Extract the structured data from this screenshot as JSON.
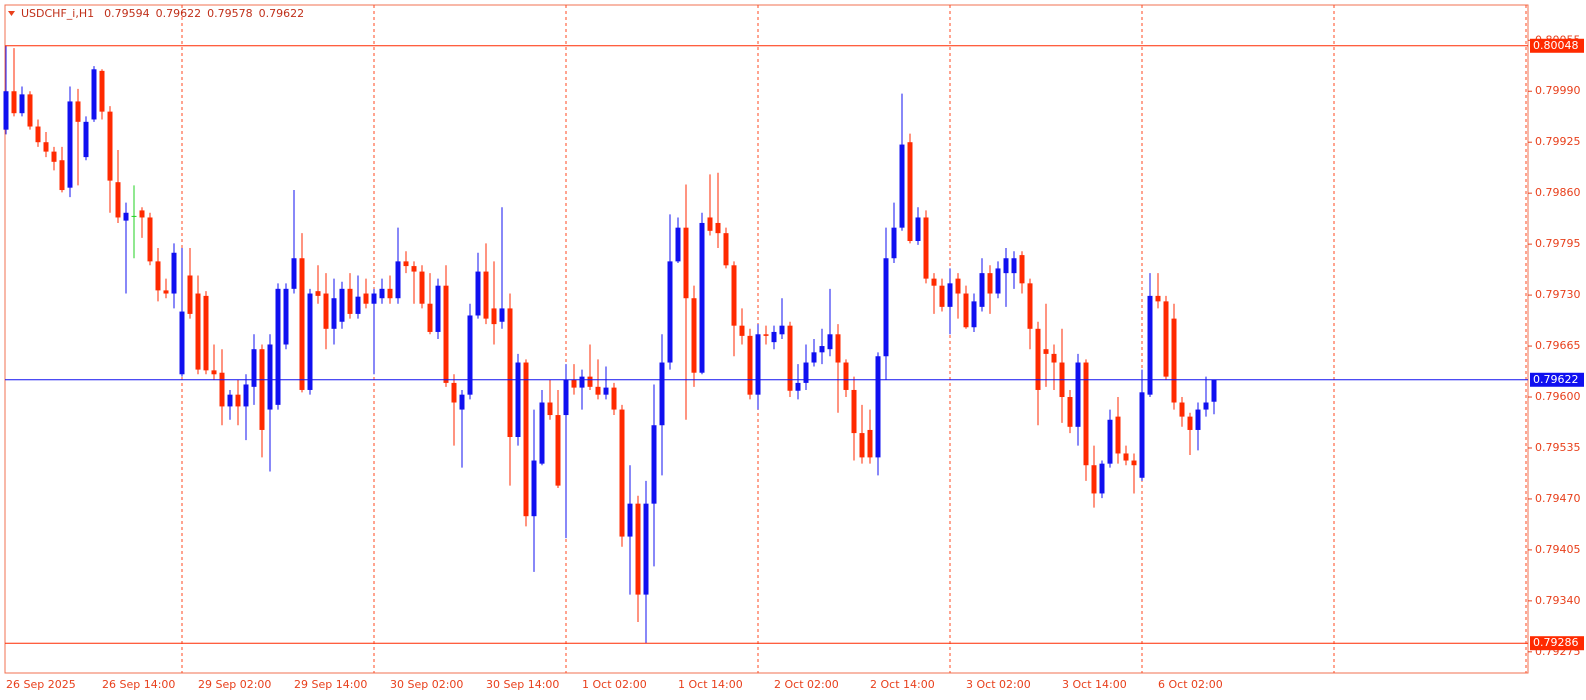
{
  "chart_data": {
    "type": "candlestick",
    "title": "USDCHF_i,H1",
    "header_ohlc": [
      0.79594,
      0.79622,
      0.79578,
      0.79622
    ],
    "categories": [
      "26 Sep 2025",
      null,
      null,
      null,
      null,
      null,
      null,
      null,
      null,
      null,
      null,
      null,
      "26 Sep 14:00",
      null,
      null,
      null,
      null,
      null,
      null,
      null,
      null,
      null,
      null,
      null,
      "29 Sep 02:00",
      null,
      null,
      null,
      null,
      null,
      null,
      null,
      null,
      null,
      null,
      null,
      "29 Sep 14:00",
      null,
      null,
      null,
      null,
      null,
      null,
      null,
      null,
      null,
      null,
      null,
      "30 Sep 02:00",
      null,
      null,
      null,
      null,
      null,
      null,
      null,
      null,
      null,
      null,
      null,
      "30 Sep 14:00",
      null,
      null,
      null,
      null,
      null,
      null,
      null,
      null,
      null,
      null,
      null,
      "1 Oct 02:00",
      null,
      null,
      null,
      null,
      null,
      null,
      null,
      null,
      null,
      null,
      null,
      "1 Oct 14:00",
      null,
      null,
      null,
      null,
      null,
      null,
      null,
      null,
      null,
      null,
      null,
      "2 Oct 02:00",
      null,
      null,
      null,
      null,
      null,
      null,
      null,
      null,
      null,
      null,
      null,
      "2 Oct 14:00",
      null,
      null,
      null,
      null,
      null,
      null,
      null,
      null,
      null,
      null,
      null,
      "3 Oct 02:00",
      null,
      null,
      null,
      null,
      null,
      null,
      null,
      null,
      null,
      null,
      null,
      "3 Oct 14:00",
      null,
      null,
      null,
      null,
      null,
      null,
      null,
      null,
      null,
      null,
      null,
      "6 Oct 02:00",
      null,
      null,
      null,
      null,
      null,
      null,
      null
    ],
    "open": [
      0.79941,
      0.7999,
      0.79962,
      0.79986,
      0.79945,
      0.79925,
      0.79913,
      0.79902,
      0.79867,
      0.79977,
      0.79906,
      0.79954,
      0.80016,
      0.79964,
      0.79874,
      0.79825,
      0.79831,
      0.79838,
      0.79829,
      0.79773,
      0.79736,
      0.79732,
      0.79629,
      0.79755,
      0.79732,
      0.79729,
      0.79634,
      0.79631,
      0.79588,
      0.79603,
      0.79588,
      0.79613,
      0.79661,
      0.79584,
      0.7959,
      0.79667,
      0.79738,
      0.79777,
      0.79609,
      0.79735,
      0.79732,
      0.79687,
      0.79696,
      0.79738,
      0.79706,
      0.79732,
      0.79719,
      0.79726,
      0.79738,
      0.79726,
      0.79773,
      0.79767,
      0.7976,
      0.79719,
      0.79683,
      0.79742,
      0.79618,
      0.79584,
      0.79603,
      0.79704,
      0.7976,
      0.79713,
      0.79696,
      0.79713,
      0.79549,
      0.79644,
      0.79448,
      0.79515,
      0.79593,
      0.79577,
      0.79577,
      0.79622,
      0.79612,
      0.79626,
      0.79613,
      0.79603,
      0.79612,
      0.79584,
      0.79422,
      0.79464,
      0.79348,
      0.79464,
      0.79564,
      0.79644,
      0.79773,
      0.79816,
      0.79726,
      0.79631,
      0.79829,
      0.79822,
      0.79809,
      0.79768,
      0.79691,
      0.79678,
      0.79603,
      0.7968,
      0.7967,
      0.7968,
      0.79691,
      0.79608,
      0.79618,
      0.79644,
      0.79657,
      0.79661,
      0.7968,
      0.79644,
      0.79609,
      0.79554,
      0.79558,
      0.79523,
      0.79652,
      0.79777,
      0.79816,
      0.79925,
      0.79799,
      0.79829,
      0.79751,
      0.79742,
      0.79715,
      0.79751,
      0.79732,
      0.79689,
      0.79715,
      0.79758,
      0.79732,
      0.79758,
      0.79758,
      0.79781,
      0.79745,
      0.79687,
      0.79661,
      0.79655,
      0.79644,
      0.796,
      0.79562,
      0.79644,
      0.79513,
      0.79477,
      0.79515,
      0.79575,
      0.79528,
      0.79519,
      0.79497,
      0.79603,
      0.79729,
      0.79722,
      0.797,
      0.79593,
      0.79575,
      0.79558,
      0.79584,
      0.79594
    ],
    "high": [
      0.80048,
      0.80045,
      0.79996,
      0.7999,
      0.79954,
      0.79938,
      0.79919,
      0.79919,
      0.79996,
      0.79993,
      0.79958,
      0.80022,
      0.80018,
      0.79971,
      0.79915,
      0.79848,
      0.7987,
      0.79842,
      0.79835,
      0.7979,
      0.79751,
      0.79796,
      0.7979,
      0.7979,
      0.79755,
      0.79735,
      0.79667,
      0.79661,
      0.79609,
      0.79622,
      0.79629,
      0.7968,
      0.79667,
      0.7968,
      0.79745,
      0.79745,
      0.79864,
      0.79809,
      0.79738,
      0.79768,
      0.79758,
      0.79751,
      0.79747,
      0.79758,
      0.79755,
      0.79751,
      0.79738,
      0.79751,
      0.79755,
      0.79816,
      0.79786,
      0.79773,
      0.79768,
      0.79758,
      0.79751,
      0.79768,
      0.79629,
      0.79609,
      0.79719,
      0.79784,
      0.79796,
      0.79773,
      0.79842,
      0.79732,
      0.79655,
      0.79648,
      0.79584,
      0.79609,
      0.79622,
      0.79609,
      0.79642,
      0.79642,
      0.79635,
      0.79667,
      0.79648,
      0.79639,
      0.79618,
      0.7959,
      0.79513,
      0.79474,
      0.79493,
      0.79616,
      0.7968,
      0.79833,
      0.79829,
      0.79871,
      0.79742,
      0.79835,
      0.79884,
      0.79886,
      0.79816,
      0.79773,
      0.79713,
      0.79687,
      0.79693,
      0.79691,
      0.79691,
      0.79726,
      0.79696,
      0.79642,
      0.79667,
      0.79674,
      0.79687,
      0.79738,
      0.79693,
      0.79648,
      0.79626,
      0.7959,
      0.79584,
      0.79657,
      0.79816,
      0.79848,
      0.79987,
      0.79936,
      0.79842,
      0.79838,
      0.79758,
      0.79751,
      0.79764,
      0.79758,
      0.79742,
      0.79732,
      0.79777,
      0.79768,
      0.79773,
      0.7979,
      0.79786,
      0.79786,
      0.79751,
      0.79696,
      0.79719,
      0.79667,
      0.79687,
      0.79609,
      0.79655,
      0.79648,
      0.79538,
      0.79519,
      0.79584,
      0.796,
      0.79538,
      0.79528,
      0.79635,
      0.79758,
      0.79758,
      0.79729,
      0.79719,
      0.796,
      0.7958,
      0.79593,
      0.79626,
      0.79622
    ],
    "low": [
      0.79935,
      0.79958,
      0.79958,
      0.79941,
      0.79919,
      0.79906,
      0.79889,
      0.79861,
      0.79855,
      0.7987,
      0.79902,
      0.79951,
      0.79954,
      0.79835,
      0.79822,
      0.79732,
      0.79777,
      0.79803,
      0.79768,
      0.79722,
      0.79726,
      0.79713,
      0.79626,
      0.797,
      0.79629,
      0.79629,
      0.79622,
      0.79564,
      0.79571,
      0.79564,
      0.79545,
      0.7959,
      0.79523,
      0.79505,
      0.79584,
      0.79661,
      0.79732,
      0.79606,
      0.79603,
      0.79719,
      0.79661,
      0.79667,
      0.79687,
      0.797,
      0.797,
      0.79713,
      0.79629,
      0.79719,
      0.79719,
      0.79719,
      0.79758,
      0.79719,
      0.79713,
      0.7968,
      0.79674,
      0.79613,
      0.79538,
      0.7951,
      0.79597,
      0.797,
      0.79693,
      0.79667,
      0.79687,
      0.79487,
      0.79538,
      0.79435,
      0.79377,
      0.79513,
      0.79571,
      0.79484,
      0.7942,
      0.79603,
      0.79584,
      0.79609,
      0.79597,
      0.79597,
      0.79577,
      0.79409,
      0.79348,
      0.79313,
      0.79286,
      0.79384,
      0.795,
      0.79635,
      0.79771,
      0.79571,
      0.79613,
      0.79629,
      0.79806,
      0.7979,
      0.79764,
      0.79652,
      0.79667,
      0.79597,
      0.79584,
      0.79667,
      0.79661,
      0.79674,
      0.796,
      0.79597,
      0.79609,
      0.79639,
      0.79642,
      0.79652,
      0.7958,
      0.796,
      0.79519,
      0.79515,
      0.79515,
      0.795,
      0.79622,
      0.79771,
      0.79812,
      0.79796,
      0.79794,
      0.79745,
      0.79706,
      0.79709,
      0.7968,
      0.797,
      0.79687,
      0.79683,
      0.79709,
      0.79706,
      0.79726,
      0.79715,
      0.79738,
      0.79732,
      0.79661,
      0.79564,
      0.79613,
      0.79609,
      0.79567,
      0.79554,
      0.79538,
      0.79493,
      0.79459,
      0.79471,
      0.7951,
      0.79515,
      0.79513,
      0.79477,
      0.79493,
      0.796,
      0.79713,
      0.79622,
      0.79584,
      0.79562,
      0.79526,
      0.79532,
      0.79575,
      0.79578
    ],
    "close": [
      0.7999,
      0.79962,
      0.79986,
      0.79945,
      0.79925,
      0.79913,
      0.799,
      0.79864,
      0.79977,
      0.79951,
      0.79951,
      0.80018,
      0.79964,
      0.79876,
      0.79829,
      0.79835,
      0.79831,
      0.79829,
      0.79773,
      0.79736,
      0.79732,
      0.79784,
      0.79709,
      0.79706,
      0.79635,
      0.79634,
      0.79629,
      0.79588,
      0.79603,
      0.79588,
      0.79616,
      0.79661,
      0.79558,
      0.79667,
      0.79738,
      0.79738,
      0.79777,
      0.79609,
      0.79732,
      0.79729,
      0.79687,
      0.79726,
      0.79738,
      0.79706,
      0.79728,
      0.79719,
      0.79732,
      0.79738,
      0.79726,
      0.79773,
      0.79767,
      0.7976,
      0.79719,
      0.79683,
      0.79742,
      0.79618,
      0.79593,
      0.79603,
      0.79704,
      0.7976,
      0.797,
      0.79693,
      0.79713,
      0.79549,
      0.79644,
      0.79448,
      0.79519,
      0.79593,
      0.79577,
      0.79487,
      0.79622,
      0.79612,
      0.79626,
      0.79613,
      0.79603,
      0.79612,
      0.79584,
      0.79422,
      0.79464,
      0.79348,
      0.79464,
      0.79564,
      0.79644,
      0.79773,
      0.79816,
      0.79726,
      0.79631,
      0.79822,
      0.79812,
      0.79809,
      0.79768,
      0.79691,
      0.79678,
      0.79603,
      0.7968,
      0.79678,
      0.79683,
      0.79691,
      0.79608,
      0.79618,
      0.79644,
      0.79657,
      0.79665,
      0.7968,
      0.79644,
      0.79609,
      0.79554,
      0.79523,
      0.79523,
      0.79652,
      0.79777,
      0.79816,
      0.79922,
      0.79799,
      0.79829,
      0.79751,
      0.79742,
      0.79715,
      0.79745,
      0.79732,
      0.79689,
      0.79722,
      0.79758,
      0.79732,
      0.79764,
      0.79777,
      0.79777,
      0.79745,
      0.79687,
      0.79609,
      0.79655,
      0.79644,
      0.796,
      0.79562,
      0.79644,
      0.79513,
      0.79477,
      0.79515,
      0.79571,
      0.79528,
      0.79519,
      0.79513,
      0.79606,
      0.79729,
      0.79722,
      0.79626,
      0.79593,
      0.79575,
      0.79558,
      0.79584,
      0.79593,
      0.79622
    ],
    "up_color": "#1010f0",
    "down_color": "#ff2a00",
    "doji_color": "#20d020",
    "ylim": [
      0.79248,
      0.801
    ],
    "yticks": [
      0.80055,
      {
        "value": 0.7999,
        "label": "0.79990"
      },
      0.79925,
      {
        "value": 0.7986,
        "label": "0.79860"
      },
      0.79795,
      {
        "value": 0.7973,
        "label": "0.79730"
      },
      0.79665,
      {
        "value": 0.796,
        "label": "0.79600"
      },
      0.79535,
      {
        "value": 0.7947,
        "label": "0.79470"
      },
      0.79405,
      {
        "value": 0.7934,
        "label": "0.79340"
      },
      0.79275
    ],
    "hlines": [
      {
        "value": 0.80048,
        "color": "#ff2a00"
      },
      {
        "value": 0.79286,
        "color": "#ff2a00"
      },
      {
        "value": 0.79622,
        "color": "#1010f0"
      }
    ],
    "grid": true
  }
}
